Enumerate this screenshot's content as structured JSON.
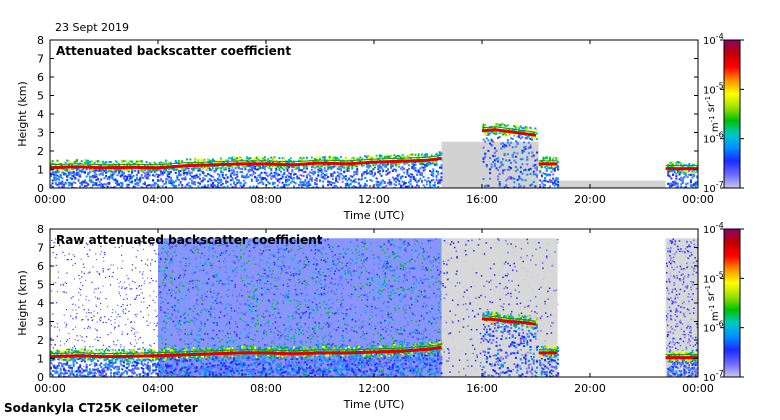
{
  "date_label": "23 Sept 2019",
  "instrument_label": "Sodankyla CT25K ceilometer",
  "colors": {
    "colormap": [
      "#c9c9ee",
      "#6a6aff",
      "#1c2cff",
      "#0090ff",
      "#00c8c8",
      "#00c000",
      "#a0e000",
      "#ffff00",
      "#ff9000",
      "#ff0000",
      "#c00000",
      "#8a0070"
    ],
    "cloud_line": "#e00000",
    "no_signal": "#d2d2d2"
  },
  "chart_data": [
    {
      "type": "heatmap",
      "title": "Attenuated backscatter coefficient",
      "xlabel": "Time (UTC)",
      "ylabel": "Height (km)",
      "x_ticks": [
        "00:00",
        "04:00",
        "08:00",
        "12:00",
        "16:00",
        "20:00",
        "00:00"
      ],
      "xlim": [
        0,
        24
      ],
      "ylim": [
        0,
        8
      ],
      "y_ticks": [
        "0",
        "1",
        "2",
        "3",
        "4",
        "5",
        "6",
        "7",
        "8"
      ],
      "colorbar": {
        "label": "m-1 sr-1",
        "ticks": [
          "10^-7",
          "10^-6",
          "10^-5",
          "10^-4"
        ],
        "range_log10": [
          -7,
          -4
        ]
      },
      "cloud_layers": [
        {
          "t": [
            0,
            1,
            2,
            3,
            4,
            5,
            6,
            7,
            8,
            9,
            10,
            11,
            12,
            13,
            14,
            14.5
          ],
          "h": [
            1.1,
            1.15,
            1.1,
            1.12,
            1.1,
            1.2,
            1.25,
            1.3,
            1.3,
            1.25,
            1.35,
            1.3,
            1.4,
            1.45,
            1.5,
            1.6
          ]
        },
        {
          "t": [
            16,
            16.5,
            17,
            17.5,
            18
          ],
          "h": [
            3.1,
            3.15,
            3.05,
            2.95,
            2.85
          ]
        },
        {
          "t": [
            18.1,
            18.8
          ],
          "h": [
            1.3,
            1.3
          ]
        },
        {
          "t": [
            22.8,
            24
          ],
          "h": [
            1.05,
            1.05
          ]
        }
      ],
      "no_signal_regions": [
        {
          "t": [
            14.5,
            18.1
          ],
          "h": [
            0,
            2.5
          ]
        },
        {
          "t": [
            18.8,
            22.8
          ],
          "h": [
            0,
            0.4
          ]
        }
      ]
    },
    {
      "type": "heatmap",
      "title": "Raw attenuated backscatter coefficient",
      "xlabel": "Time (UTC)",
      "ylabel": "Height (km)",
      "x_ticks": [
        "00:00",
        "04:00",
        "08:00",
        "12:00",
        "16:00",
        "20:00",
        "00:00"
      ],
      "xlim": [
        0,
        24
      ],
      "ylim": [
        0,
        8
      ],
      "y_ticks": [
        "0",
        "1",
        "2",
        "3",
        "4",
        "5",
        "6",
        "7",
        "8"
      ],
      "colorbar": {
        "label": "m-1 sr-1",
        "ticks": [
          "10^-7",
          "10^-6",
          "10^-5",
          "10^-4"
        ],
        "range_log10": [
          -7,
          -4
        ]
      },
      "cloud_layers": [
        {
          "t": [
            0,
            1,
            2,
            3,
            4,
            5,
            6,
            7,
            8,
            9,
            10,
            11,
            12,
            13,
            14,
            14.5
          ],
          "h": [
            1.1,
            1.15,
            1.1,
            1.12,
            1.15,
            1.2,
            1.25,
            1.3,
            1.3,
            1.25,
            1.3,
            1.3,
            1.35,
            1.4,
            1.5,
            1.6
          ]
        },
        {
          "t": [
            16,
            16.5,
            17,
            17.5,
            18
          ],
          "h": [
            3.15,
            3.1,
            3.0,
            2.95,
            2.85
          ]
        },
        {
          "t": [
            18.1,
            18.8
          ],
          "h": [
            1.3,
            1.3
          ]
        },
        {
          "t": [
            22.8,
            24
          ],
          "h": [
            1.05,
            1.05
          ]
        }
      ],
      "noise_regions": [
        {
          "t": [
            4,
            14.5
          ],
          "h": [
            0,
            7.5
          ]
        },
        {
          "t": [
            14.5,
            18.8
          ],
          "h": [
            0,
            7.5
          ]
        },
        {
          "t": [
            22.8,
            24
          ],
          "h": [
            0,
            7.5
          ]
        }
      ]
    }
  ]
}
